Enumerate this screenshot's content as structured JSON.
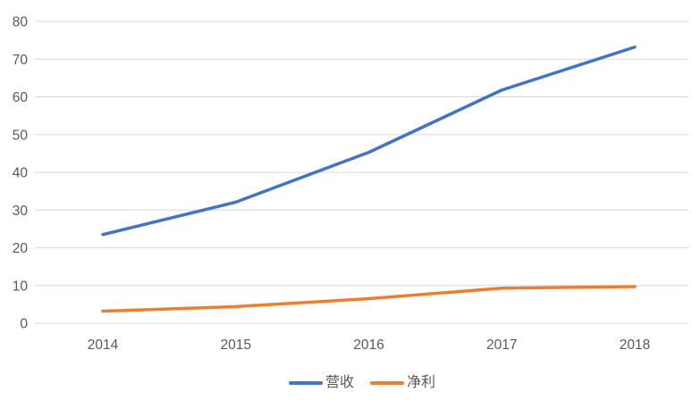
{
  "chart_data": {
    "type": "line",
    "title": "",
    "categories": [
      "2014",
      "2015",
      "2016",
      "2017",
      "2018"
    ],
    "series": [
      {
        "name": "营收",
        "color": "#4472C4",
        "values": [
          23.5,
          32.1,
          45.3,
          61.8,
          73.2
        ]
      },
      {
        "name": "净利",
        "color": "#ED7D31",
        "values": [
          3.2,
          4.4,
          6.5,
          9.3,
          9.7
        ]
      }
    ],
    "ylim": [
      0,
      80
    ],
    "yticks": [
      0,
      10,
      20,
      30,
      40,
      50,
      60,
      70,
      80
    ],
    "grid": "horizontal",
    "legend_position": "bottom-center",
    "line_width": 3.5,
    "colors": {
      "gridline": "#D9D9D9",
      "axis_line": "#D9D9D9",
      "axis_text": "#595959",
      "background": "#FFFFFF"
    }
  }
}
